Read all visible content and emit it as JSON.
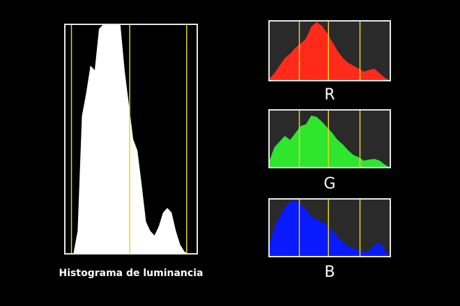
{
  "chart_data": [
    {
      "type": "area",
      "title": "Histograma de luminancia",
      "color": "#ffffff",
      "background": "#000000",
      "tick_color": "#e8d41c",
      "xlim": [
        0,
        100
      ],
      "xticks": [
        5,
        49,
        92
      ],
      "ylim": [
        0,
        100
      ],
      "values": [
        0,
        0,
        0,
        10,
        60,
        70,
        82,
        80,
        98,
        100,
        100,
        100,
        100,
        100,
        80,
        65,
        50,
        45,
        30,
        14,
        10,
        8,
        12,
        18,
        20,
        18,
        10,
        4,
        1,
        0,
        0,
        0
      ]
    },
    {
      "type": "area",
      "title": "R",
      "color": "#ff2a1a",
      "background": "#2a2a2a",
      "tick_color": "#e8d41c",
      "xlim": [
        0,
        100
      ],
      "xticks": [
        25,
        49,
        75
      ],
      "ylim": [
        0,
        100
      ],
      "values": [
        3,
        12,
        25,
        38,
        45,
        55,
        62,
        70,
        90,
        98,
        92,
        80,
        65,
        50,
        38,
        30,
        25,
        20,
        15,
        18,
        20,
        12,
        5,
        0
      ]
    },
    {
      "type": "area",
      "title": "G",
      "color": "#2ee62e",
      "background": "#2a2a2a",
      "tick_color": "#e8d41c",
      "xlim": [
        0,
        100
      ],
      "xticks": [
        25,
        49,
        75
      ],
      "ylim": [
        0,
        100
      ],
      "values": [
        10,
        35,
        45,
        55,
        48,
        60,
        72,
        75,
        90,
        88,
        80,
        70,
        60,
        48,
        40,
        30,
        22,
        18,
        12,
        14,
        15,
        12,
        5,
        0
      ]
    },
    {
      "type": "area",
      "title": "B",
      "color": "#0a1aff",
      "background": "#2a2a2a",
      "tick_color": "#e8d41c",
      "xlim": [
        0,
        100
      ],
      "xticks": [
        25,
        49,
        75
      ],
      "ylim": [
        0,
        100
      ],
      "values": [
        20,
        50,
        70,
        85,
        95,
        98,
        90,
        82,
        70,
        65,
        60,
        55,
        45,
        35,
        25,
        18,
        15,
        10,
        8,
        10,
        20,
        25,
        10,
        0
      ]
    }
  ]
}
